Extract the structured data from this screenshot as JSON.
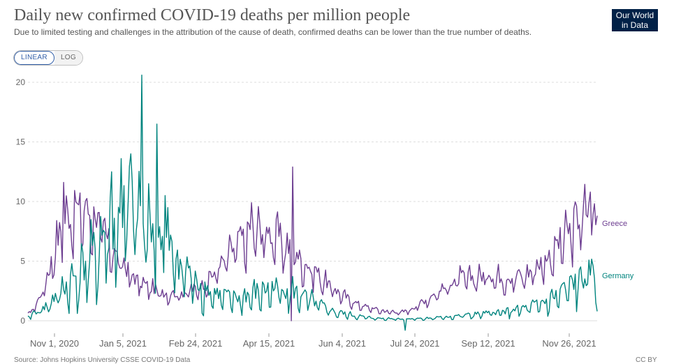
{
  "header": {
    "title": "Daily new confirmed COVID-19 deaths per million people",
    "subtitle": "Due to limited testing and challenges in the attribution of the cause of death, confirmed deaths can be lower than the true number of deaths.",
    "logo_line1": "Our World",
    "logo_line2": "in Data"
  },
  "controls": {
    "linear_label": "LINEAR",
    "log_label": "LOG",
    "selected": "LINEAR"
  },
  "footer": {
    "source": "Source: Johns Hopkins University CSSE COVID-19 Data",
    "license": "CC BY"
  },
  "colors": {
    "greece": "#6d3e91",
    "germany": "#00847e",
    "grid": "#dddddd",
    "axis_text": "#666666"
  },
  "chart_data": {
    "type": "line",
    "title": "Daily new confirmed COVID-19 deaths per million people",
    "xlabel": "",
    "ylabel": "",
    "ylim": [
      0,
      20
    ],
    "yticks": [
      0,
      5,
      10,
      15,
      20
    ],
    "xlim": [
      "2020-10-24",
      "2021-12-13"
    ],
    "xtick_labels": [
      "Nov 1, 2020",
      "Jan 5, 2021",
      "Feb 24, 2021",
      "Apr 15, 2021",
      "Jun 4, 2021",
      "Jul 24, 2021",
      "Sep 12, 2021",
      "Nov 26, 2021"
    ],
    "grid": true,
    "legend_placement": "end-of-line labels, right",
    "series": [
      {
        "name": "Greece",
        "color": "#6d3e91",
        "keypoints": [
          {
            "date": "2020-10-24",
            "value": 0.5
          },
          {
            "date": "2020-10-31",
            "value": 1.5
          },
          {
            "date": "2020-11-07",
            "value": 3.5
          },
          {
            "date": "2020-11-14",
            "value": 6.5
          },
          {
            "date": "2020-11-21",
            "value": 8.5
          },
          {
            "date": "2020-11-28",
            "value": 9.0
          },
          {
            "date": "2020-12-05",
            "value": 9.0
          },
          {
            "date": "2020-12-12",
            "value": 8.5
          },
          {
            "date": "2020-12-19",
            "value": 7.0
          },
          {
            "date": "2020-12-26",
            "value": 5.5
          },
          {
            "date": "2021-01-02",
            "value": 4.5
          },
          {
            "date": "2021-01-09",
            "value": 3.5
          },
          {
            "date": "2021-01-16",
            "value": 3.0
          },
          {
            "date": "2021-01-30",
            "value": 2.3
          },
          {
            "date": "2021-02-13",
            "value": 2.2
          },
          {
            "date": "2021-02-27",
            "value": 2.8
          },
          {
            "date": "2021-03-06",
            "value": 3.5
          },
          {
            "date": "2021-03-13",
            "value": 4.5
          },
          {
            "date": "2021-03-20",
            "value": 5.5
          },
          {
            "date": "2021-03-27",
            "value": 6.5
          },
          {
            "date": "2021-04-03",
            "value": 7.0
          },
          {
            "date": "2021-04-10",
            "value": 7.5
          },
          {
            "date": "2021-04-17",
            "value": 7.2
          },
          {
            "date": "2021-04-24",
            "value": 7.0
          },
          {
            "date": "2021-05-01",
            "value": 6.0
          },
          {
            "date": "2021-05-08",
            "value": 5.3
          },
          {
            "date": "2021-05-15",
            "value": 4.5
          },
          {
            "date": "2021-05-22",
            "value": 4.0
          },
          {
            "date": "2021-05-29",
            "value": 3.2
          },
          {
            "date": "2021-06-05",
            "value": 2.5
          },
          {
            "date": "2021-06-12",
            "value": 2.0
          },
          {
            "date": "2021-06-19",
            "value": 1.5
          },
          {
            "date": "2021-06-26",
            "value": 1.2
          },
          {
            "date": "2021-07-10",
            "value": 0.8
          },
          {
            "date": "2021-07-24",
            "value": 0.7
          },
          {
            "date": "2021-07-31",
            "value": 1.0
          },
          {
            "date": "2021-08-07",
            "value": 1.5
          },
          {
            "date": "2021-08-14",
            "value": 2.0
          },
          {
            "date": "2021-08-21",
            "value": 2.5
          },
          {
            "date": "2021-08-28",
            "value": 3.0
          },
          {
            "date": "2021-09-04",
            "value": 3.5
          },
          {
            "date": "2021-09-11",
            "value": 3.5
          },
          {
            "date": "2021-09-25",
            "value": 3.8
          },
          {
            "date": "2021-10-09",
            "value": 3.5
          },
          {
            "date": "2021-10-23",
            "value": 3.8
          },
          {
            "date": "2021-10-30",
            "value": 4.5
          },
          {
            "date": "2021-11-06",
            "value": 5.0
          },
          {
            "date": "2021-11-13",
            "value": 6.0
          },
          {
            "date": "2021-11-20",
            "value": 7.0
          },
          {
            "date": "2021-11-27",
            "value": 8.0
          },
          {
            "date": "2021-12-04",
            "value": 9.0
          },
          {
            "date": "2021-12-13",
            "value": 8.2
          }
        ],
        "spikes": [
          {
            "date": "2020-11-19",
            "value": 11.6
          },
          {
            "date": "2021-04-05",
            "value": 9.9
          },
          {
            "date": "2021-05-05",
            "value": 12.9
          },
          {
            "date": "2021-05-04",
            "value": 0.0
          },
          {
            "date": "2021-12-08",
            "value": 10.8
          }
        ],
        "end_label": "Greece"
      },
      {
        "name": "Germany",
        "color": "#00847e",
        "keypoints": [
          {
            "date": "2020-10-24",
            "value": 0.3
          },
          {
            "date": "2020-10-31",
            "value": 0.8
          },
          {
            "date": "2020-11-07",
            "value": 1.2
          },
          {
            "date": "2020-11-14",
            "value": 2.0
          },
          {
            "date": "2020-11-21",
            "value": 2.8
          },
          {
            "date": "2020-11-28",
            "value": 3.5
          },
          {
            "date": "2020-12-05",
            "value": 4.5
          },
          {
            "date": "2020-12-12",
            "value": 5.5
          },
          {
            "date": "2020-12-19",
            "value": 7.0
          },
          {
            "date": "2020-12-26",
            "value": 7.5
          },
          {
            "date": "2021-01-02",
            "value": 8.5
          },
          {
            "date": "2021-01-09",
            "value": 9.0
          },
          {
            "date": "2021-01-16",
            "value": 8.5
          },
          {
            "date": "2021-01-23",
            "value": 7.5
          },
          {
            "date": "2021-01-30",
            "value": 6.5
          },
          {
            "date": "2021-02-06",
            "value": 5.5
          },
          {
            "date": "2021-02-13",
            "value": 4.5
          },
          {
            "date": "2021-02-20",
            "value": 3.5
          },
          {
            "date": "2021-02-27",
            "value": 2.8
          },
          {
            "date": "2021-03-06",
            "value": 2.3
          },
          {
            "date": "2021-03-13",
            "value": 2.0
          },
          {
            "date": "2021-03-20",
            "value": 1.8
          },
          {
            "date": "2021-03-27",
            "value": 1.8
          },
          {
            "date": "2021-04-03",
            "value": 2.0
          },
          {
            "date": "2021-04-10",
            "value": 2.3
          },
          {
            "date": "2021-04-17",
            "value": 2.5
          },
          {
            "date": "2021-04-24",
            "value": 2.6
          },
          {
            "date": "2021-05-01",
            "value": 2.5
          },
          {
            "date": "2021-05-08",
            "value": 2.2
          },
          {
            "date": "2021-05-15",
            "value": 1.8
          },
          {
            "date": "2021-05-22",
            "value": 1.4
          },
          {
            "date": "2021-05-29",
            "value": 1.0
          },
          {
            "date": "2021-06-05",
            "value": 0.7
          },
          {
            "date": "2021-06-19",
            "value": 0.4
          },
          {
            "date": "2021-07-03",
            "value": 0.2
          },
          {
            "date": "2021-07-24",
            "value": 0.15
          },
          {
            "date": "2021-08-14",
            "value": 0.2
          },
          {
            "date": "2021-09-04",
            "value": 0.4
          },
          {
            "date": "2021-09-25",
            "value": 0.6
          },
          {
            "date": "2021-10-09",
            "value": 0.8
          },
          {
            "date": "2021-10-23",
            "value": 1.0
          },
          {
            "date": "2021-11-06",
            "value": 1.5
          },
          {
            "date": "2021-11-20",
            "value": 2.5
          },
          {
            "date": "2021-11-27",
            "value": 3.0
          },
          {
            "date": "2021-12-04",
            "value": 3.5
          },
          {
            "date": "2021-12-13",
            "value": 3.8
          }
        ],
        "spikes": [
          {
            "date": "2021-01-15",
            "value": 20.6
          },
          {
            "date": "2021-01-26",
            "value": 16.5
          },
          {
            "date": "2021-01-07",
            "value": 14.0
          },
          {
            "date": "2020-12-31",
            "value": 13.6
          },
          {
            "date": "2021-01-20",
            "value": 11.5
          },
          {
            "date": "2021-02-01",
            "value": 10.5
          },
          {
            "date": "2020-12-24",
            "value": 12.5
          },
          {
            "date": "2021-07-26",
            "value": -0.8
          }
        ],
        "end_label": "Germany"
      }
    ]
  }
}
